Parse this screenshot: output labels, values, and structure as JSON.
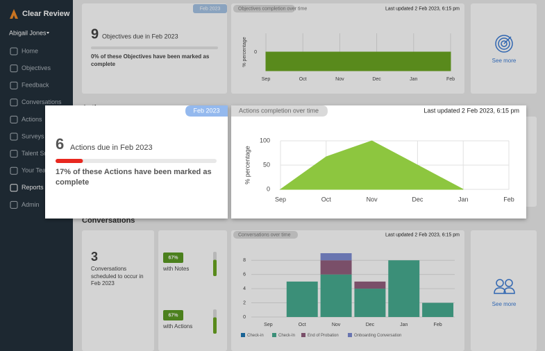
{
  "sidebar": {
    "brand": "Clear Review",
    "user": "Abigail Jones",
    "nav": [
      "Home",
      "Objectives",
      "Feedback",
      "Conversations",
      "Actions",
      "Surveys",
      "Talent Snapshot",
      "Your Team",
      "Reports",
      "Admin"
    ],
    "active": 8
  },
  "sections": [
    "Actions",
    "Conversations"
  ],
  "objectives": {
    "tag": "Feb 2023",
    "count": 9,
    "label": "Objectives due in Feb 2023",
    "completion": 0,
    "summary": "0% of these Objectives have been marked as complete",
    "see_more": "See more",
    "chart": {
      "type": "area",
      "title": "Objectives completion over time",
      "updated": "Last updated 2 Feb 2023, 6:15 pm",
      "y_label": "% percentage",
      "categories": [
        "Sep",
        "Oct",
        "Nov",
        "Dec",
        "Jan",
        "Feb"
      ],
      "values": [
        0,
        0,
        0,
        0,
        0,
        0
      ],
      "color": "#6ca722",
      "ylim": [
        -1,
        1
      ],
      "yticks": [
        0
      ]
    }
  },
  "actions": {
    "tag": "Feb 2023",
    "count": 6,
    "label": "Actions due in Feb 2023",
    "completion": 17,
    "summary": "17% of these Actions have been marked as complete",
    "chart": {
      "type": "area",
      "title": "Actions completion over time",
      "updated": "Last updated 2 Feb 2023, 6:15 pm",
      "y_label": "% percentage",
      "categories": [
        "Sep",
        "Oct",
        "Nov",
        "Dec",
        "Jan",
        "Feb"
      ],
      "values": [
        0,
        67,
        100,
        50,
        0,
        null
      ],
      "color": "#8dc63f",
      "ylim": [
        0,
        100
      ],
      "yticks": [
        0,
        50,
        100
      ]
    }
  },
  "conversations": {
    "count": 3,
    "label": "Conversations scheduled to occur in Feb 2023",
    "stats": [
      {
        "value": 67,
        "value_label": "67%",
        "label": "with Notes"
      },
      {
        "value": 67,
        "value_label": "67%",
        "label": "with Actions"
      }
    ],
    "see_more": "See more",
    "chart": {
      "type": "bar",
      "stacked": true,
      "title": "Conversations over time",
      "updated": "Last updated 2 Feb 2023, 6:15 pm",
      "categories": [
        "Sep",
        "Oct",
        "Nov",
        "Dec",
        "Jan",
        "Feb"
      ],
      "series": [
        {
          "name": "Check-in",
          "color": "#1f78b4",
          "values": [
            0,
            0,
            0,
            0,
            0,
            0
          ]
        },
        {
          "name": "Check-In",
          "color": "#48ac91",
          "values": [
            0,
            5,
            6,
            4,
            8,
            2
          ]
        },
        {
          "name": "End of Probation",
          "color": "#93607f",
          "values": [
            0,
            0,
            2,
            1,
            0,
            0
          ]
        },
        {
          "name": "Onboarding Conversation",
          "color": "#7f8dd4",
          "values": [
            0,
            0,
            1,
            0,
            0,
            0
          ]
        }
      ],
      "ylim": [
        0,
        9
      ],
      "yticks": [
        0,
        2,
        4,
        6,
        8
      ]
    }
  }
}
